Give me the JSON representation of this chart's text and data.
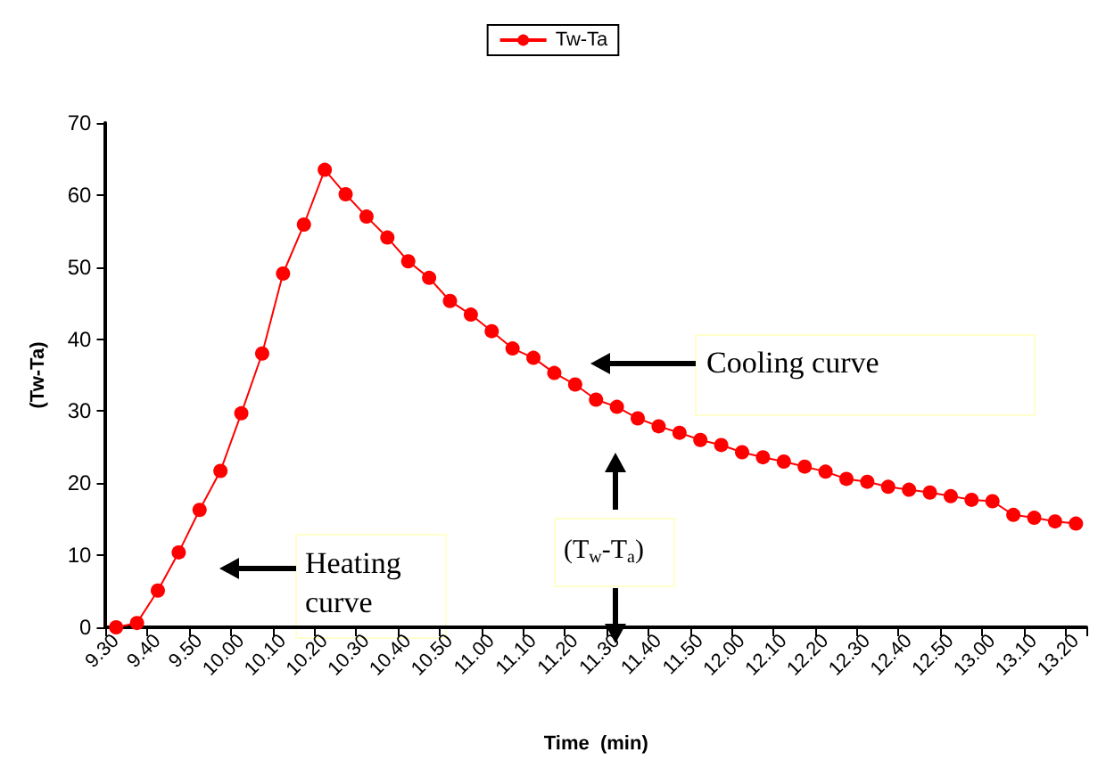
{
  "chart_data": {
    "type": "line",
    "xlabel": "Time  (min)",
    "ylabel": "(Tw-Ta)",
    "categories": [
      "9.30",
      null,
      "9.40",
      null,
      "9.50",
      null,
      "10.00",
      null,
      "10.10",
      null,
      "10.20",
      null,
      "10.30",
      null,
      "10.40",
      null,
      "10.50",
      null,
      "11.00",
      null,
      "11.10",
      null,
      "11.20",
      null,
      "11.30",
      null,
      "11.40",
      null,
      "11.50",
      null,
      "12.00",
      null,
      "12.10",
      null,
      "12.20",
      null,
      "12.30",
      null,
      "12.40",
      null,
      "12.50",
      null,
      "13.00",
      null,
      "13.10",
      null,
      "13.20"
    ],
    "series": [
      {
        "name": "Tw-Ta",
        "color": "#ff0000",
        "values": [
          0,
          0.6,
          5.1,
          10.4,
          16.3,
          21.7,
          29.7,
          38,
          49.1,
          55.9,
          63.5,
          60.1,
          57.0,
          54.1,
          50.8,
          48.5,
          45.3,
          43.4,
          41.1,
          38.7,
          37.4,
          35.3,
          33.7,
          31.6,
          30.6,
          29.0,
          27.9,
          27.0,
          26.0,
          25.3,
          24.3,
          23.6,
          23.0,
          22.3,
          21.6,
          20.6,
          20.2,
          19.5,
          19.1,
          18.7,
          18.2,
          17.7,
          17.5,
          15.6,
          15.2,
          14.7,
          14.4
        ]
      }
    ],
    "ylim": [
      0,
      70
    ],
    "yticks": [
      0,
      10,
      20,
      30,
      40,
      50,
      60,
      70
    ],
    "grid": false,
    "legend": "top",
    "marker": "circle",
    "line_style": "solid",
    "annotations": [
      "Heating curve",
      "Cooling curve",
      "(T$_{w}$-T$_{a}$)"
    ]
  }
}
